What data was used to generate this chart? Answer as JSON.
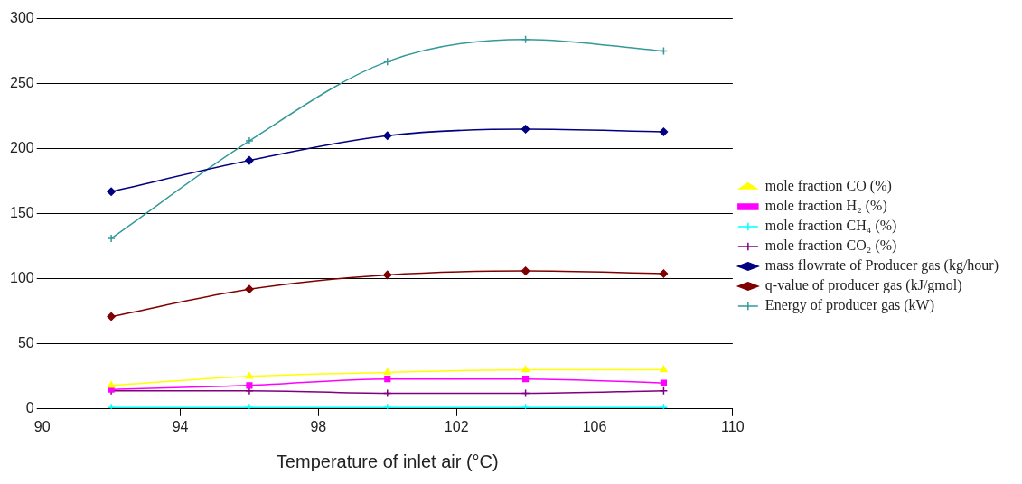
{
  "chart_data": {
    "type": "line",
    "xlabel": "Temperature of inlet air (°C)",
    "x": [
      92,
      96,
      100,
      104,
      108
    ],
    "xlim": [
      90,
      110
    ],
    "xticks": [
      90,
      94,
      98,
      102,
      106,
      110
    ],
    "ylim": [
      0,
      300
    ],
    "yticks": [
      0,
      50,
      100,
      150,
      200,
      250,
      300
    ],
    "grid": "y",
    "legend": "right",
    "line_style": "solid",
    "series": [
      {
        "name": "mole fraction CO (%)",
        "color": "#ffff00",
        "marker": "triangle",
        "values": [
          18,
          25,
          28,
          30,
          30
        ]
      },
      {
        "name": "mole fraction H₂ (%)",
        "color": "#ff00ff",
        "marker": "square",
        "values": [
          15,
          18,
          23,
          23,
          20
        ]
      },
      {
        "name": "mole fraction CH₄ (%)",
        "color": "#00ffff",
        "marker": "cross",
        "values": [
          1,
          1,
          1,
          1,
          1
        ]
      },
      {
        "name": "mole fraction CO₂ (%)",
        "color": "#800080",
        "marker": "cross",
        "values": [
          14,
          14,
          12,
          12,
          14
        ]
      },
      {
        "name": "mass flowrate of Producer gas (kg/hour)",
        "color": "#000080",
        "marker": "diamond",
        "values": [
          167,
          191,
          210,
          215,
          213
        ]
      },
      {
        "name": "q-value of producer gas (kJ/gmol)",
        "color": "#800000",
        "marker": "diamond",
        "values": [
          71,
          92,
          103,
          106,
          104
        ]
      },
      {
        "name": "Energy of producer gas (kW)",
        "color": "#339999",
        "marker": "cross",
        "values": [
          131,
          206,
          267,
          284,
          275
        ]
      }
    ]
  }
}
